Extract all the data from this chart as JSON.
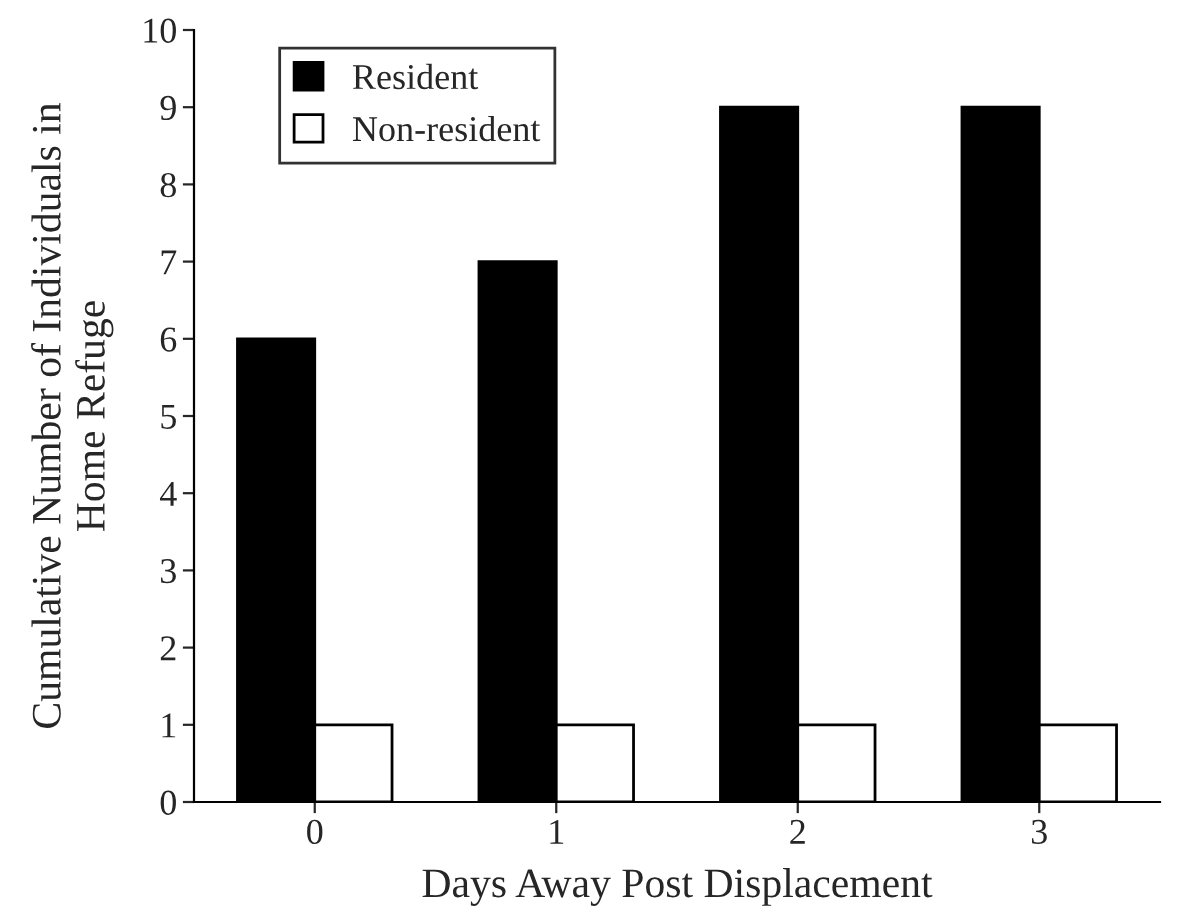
{
  "chart_data": {
    "type": "bar",
    "xlabel": "Days Away Post Displacement",
    "ylabel": "Cumulative Number of Individuals in\nHome Refuge",
    "categories": [
      "0",
      "1",
      "2",
      "3"
    ],
    "series": [
      {
        "name": "Resident",
        "color": "#000000",
        "values": [
          6,
          7,
          9,
          9
        ]
      },
      {
        "name": "Non-resident",
        "color": "#ffffff",
        "values": [
          1,
          1,
          1,
          1
        ]
      }
    ],
    "ylim": [
      0,
      10
    ],
    "yticks": [
      0,
      1,
      2,
      3,
      4,
      5,
      6,
      7,
      8,
      9,
      10
    ],
    "grid": false,
    "legend": "top left"
  }
}
